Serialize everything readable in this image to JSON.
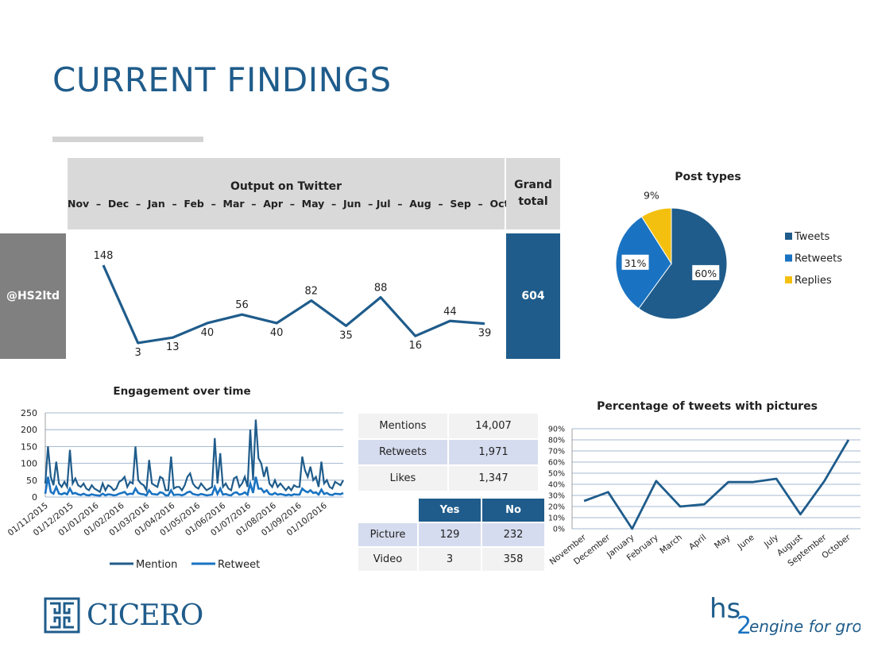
{
  "page": {
    "title": "CURRENT FINDINGS"
  },
  "twitter_output": {
    "header_title": "Output on Twitter",
    "months_line": "Nov  –  Dec  –  Jan  –  Feb  –  Mar  –  Apr  –  May  –  Jun  – Jul  –  Aug  –  Sep  –  Oct",
    "grand_total_label_1": "Grand",
    "grand_total_label_2": "total",
    "handle": "@HS2ltd",
    "grand_total_value": "604",
    "line_color": "#1f5c8b"
  },
  "chart_data": [
    {
      "id": "output_on_twitter",
      "type": "line",
      "categories": [
        "Nov",
        "Dec",
        "Jan",
        "Feb",
        "Mar",
        "Apr",
        "May",
        "Jun",
        "Jul",
        "Aug",
        "Sep",
        "Oct"
      ],
      "values": [
        148,
        3,
        13,
        40,
        56,
        40,
        82,
        35,
        88,
        16,
        44,
        39
      ]
    },
    {
      "id": "post_types",
      "type": "pie",
      "title": "Post types",
      "slices": [
        {
          "label": "Tweets",
          "value": 60,
          "display": "60%",
          "color": "#1f5c8b"
        },
        {
          "label": "Retweets",
          "value": 31,
          "display": "31%",
          "color": "#1a73c2"
        },
        {
          "label": "Replies",
          "value": 9,
          "display": "9%",
          "color": "#f4c00f"
        }
      ],
      "legend": "right"
    },
    {
      "id": "engagement_over_time",
      "type": "line",
      "title": "Engagement over time",
      "ylim": [
        0,
        250
      ],
      "yticks": [
        0,
        50,
        100,
        150,
        200,
        250
      ],
      "xticks": [
        "01/11/2015",
        "01/12/2015",
        "01/01/2016",
        "01/02/2016",
        "01/03/2016",
        "01/04/2016",
        "01/05/2016",
        "01/06/2016",
        "01/07/2016",
        "01/08/2016",
        "01/09/2016",
        "01/10/2016"
      ],
      "series": [
        {
          "name": "Mention",
          "color": "#1f5c8b",
          "values": [
            40,
            150,
            60,
            35,
            105,
            40,
            30,
            45,
            30,
            140,
            40,
            55,
            35,
            30,
            40,
            25,
            20,
            35,
            25,
            20,
            15,
            40,
            20,
            35,
            30,
            20,
            25,
            45,
            50,
            60,
            30,
            45,
            40,
            150,
            50,
            40,
            35,
            20,
            110,
            40,
            35,
            30,
            60,
            55,
            20,
            20,
            120,
            25,
            30,
            30,
            20,
            35,
            60,
            70,
            40,
            30,
            25,
            40,
            30,
            20,
            25,
            30,
            175,
            40,
            130,
            30,
            40,
            25,
            20,
            55,
            60,
            30,
            40,
            60,
            30,
            200,
            50,
            230,
            115,
            100,
            60,
            90,
            40,
            30,
            50,
            30,
            40,
            30,
            20,
            30,
            20,
            35,
            30,
            30,
            120,
            80,
            60,
            90,
            50,
            60,
            30,
            105,
            40,
            50,
            30,
            25,
            45,
            40,
            35,
            50
          ]
        },
        {
          "name": "Retweet",
          "color": "#1a73c2",
          "values": [
            10,
            60,
            15,
            10,
            30,
            10,
            8,
            12,
            8,
            25,
            10,
            12,
            8,
            6,
            10,
            6,
            5,
            8,
            6,
            5,
            4,
            10,
            5,
            8,
            7,
            5,
            6,
            10,
            12,
            15,
            7,
            10,
            9,
            25,
            12,
            9,
            8,
            5,
            20,
            9,
            8,
            7,
            14,
            12,
            5,
            5,
            20,
            6,
            7,
            7,
            5,
            8,
            14,
            16,
            9,
            7,
            6,
            9,
            7,
            5,
            6,
            7,
            30,
            9,
            25,
            7,
            9,
            6,
            5,
            12,
            14,
            7,
            9,
            14,
            7,
            40,
            12,
            60,
            25,
            25,
            14,
            20,
            9,
            7,
            12,
            7,
            9,
            7,
            5,
            7,
            5,
            8,
            7,
            7,
            25,
            18,
            14,
            20,
            12,
            14,
            7,
            22,
            9,
            12,
            7,
            6,
            10,
            9,
            8,
            12
          ]
        }
      ],
      "legend": "bottom"
    },
    {
      "id": "pct_tweets_with_pictures",
      "type": "line",
      "title": "Percentage of tweets with pictures",
      "categories": [
        "November",
        "December",
        "January",
        "February",
        "March",
        "April",
        "May",
        "June",
        "July",
        "August",
        "September",
        "October"
      ],
      "values": [
        25,
        33,
        0,
        43,
        20,
        22,
        42,
        42,
        45,
        13,
        43,
        80
      ],
      "ylim": [
        0,
        90
      ],
      "yticks": [
        "0%",
        "10%",
        "20%",
        "30%",
        "40%",
        "50%",
        "60%",
        "70%",
        "80%",
        "90%"
      ],
      "color": "#1f5c8b"
    }
  ],
  "stats_table": [
    {
      "label": "Mentions",
      "value": "14,007"
    },
    {
      "label": "Retweets",
      "value": "1,971"
    },
    {
      "label": "Likes",
      "value": "1,347"
    }
  ],
  "media_table": {
    "headers": [
      "Yes",
      "No"
    ],
    "rows": [
      {
        "label": "Picture",
        "yes": "129",
        "no": "232"
      },
      {
        "label": "Video",
        "yes": "3",
        "no": "358"
      }
    ]
  },
  "logos": {
    "cicero": "CICERO",
    "hs2_main": "hs",
    "hs2_num": "2",
    "hs2_tagline": "engine for growth"
  },
  "colors": {
    "brand_blue": "#1f5c8b",
    "accent_blue": "#1a73c2",
    "yellow": "#f4c00f",
    "grey": "#808080",
    "light_grey": "#d9d9d9"
  }
}
